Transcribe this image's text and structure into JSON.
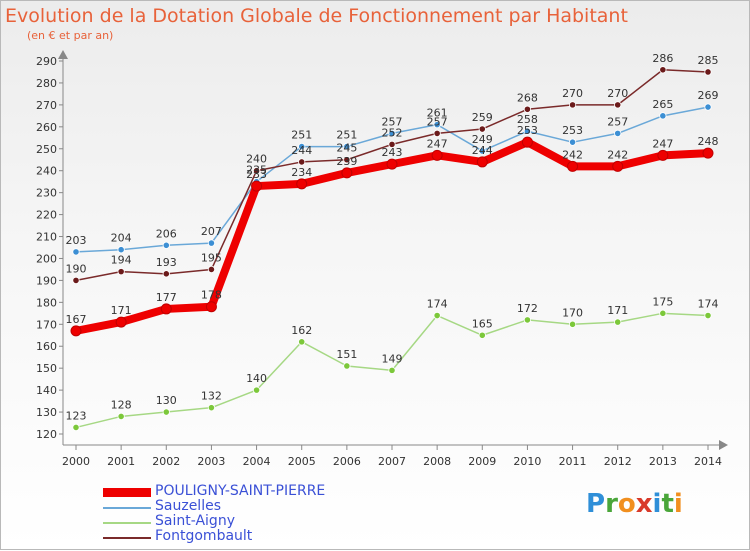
{
  "title": "Evolution de la Dotation Globale de Fonctionnement par Habitant",
  "subtitle": "(en € et par an)",
  "logo": {
    "letters": [
      "P",
      "r",
      "o",
      "x",
      "i",
      "t",
      "i"
    ],
    "colors": [
      "#2f8fd8",
      "#4aa63a",
      "#f18f1f",
      "#d93a2a",
      "#2f8fd8",
      "#4aa63a",
      "#f18f1f"
    ]
  },
  "chart_data": {
    "type": "line",
    "x": [
      2000,
      2001,
      2002,
      2003,
      2004,
      2005,
      2006,
      2007,
      2008,
      2009,
      2010,
      2011,
      2012,
      2013,
      2014
    ],
    "ylim": [
      120,
      290
    ],
    "yticks": [
      120,
      130,
      140,
      150,
      160,
      170,
      180,
      190,
      200,
      210,
      220,
      230,
      240,
      250,
      260,
      270,
      280,
      290
    ],
    "grid": false,
    "legend_position": "bottom-left",
    "series": [
      {
        "key": "pouligny",
        "name": "POULIGNY-SAINT-PIERRE",
        "color": "#ee0000",
        "marker": "#ee0000",
        "values": [
          167,
          171,
          177,
          178,
          233,
          234,
          239,
          243,
          247,
          244,
          253,
          242,
          242,
          247,
          248
        ]
      },
      {
        "key": "sauzelles",
        "name": "Sauzelles",
        "color": "#6aa8d8",
        "marker": "#3c8fd4",
        "values": [
          203,
          204,
          206,
          207,
          235,
          251,
          251,
          257,
          261,
          249,
          258,
          253,
          257,
          265,
          269
        ]
      },
      {
        "key": "saint_aigny",
        "name": "Saint-Aigny",
        "color": "#a6d884",
        "marker": "#7cc83a",
        "values": [
          123,
          128,
          130,
          132,
          140,
          162,
          151,
          149,
          174,
          165,
          172,
          170,
          171,
          175,
          174
        ]
      },
      {
        "key": "fontgombault",
        "name": "Fontgombault",
        "color": "#7a2a2a",
        "marker": "#6b1a1a",
        "values": [
          190,
          194,
          193,
          195,
          240,
          244,
          245,
          252,
          257,
          259,
          268,
          270,
          270,
          286,
          285
        ]
      }
    ],
    "labels": {
      "pouligny": [
        "167",
        "171",
        "177",
        "178",
        "233",
        "234",
        "239",
        "243",
        "247",
        "244",
        "253",
        "242",
        "242",
        "247",
        "248"
      ],
      "sauzelles": [
        "203",
        "204",
        "206",
        "207",
        "235",
        "251",
        "251",
        "257",
        "261",
        "249",
        "258",
        "253",
        "257",
        "265",
        "269"
      ],
      "saint_aigny": [
        "123",
        "128",
        "130",
        "132",
        "140",
        "162",
        "151",
        "149",
        "174",
        "165",
        "172",
        "170",
        "171",
        "175",
        "174"
      ],
      "fontgombault": [
        "190",
        "194",
        "193",
        "195",
        "240",
        "244",
        "245",
        "252",
        "257",
        "259",
        "268",
        "270",
        "270",
        "286",
        "285"
      ]
    }
  }
}
